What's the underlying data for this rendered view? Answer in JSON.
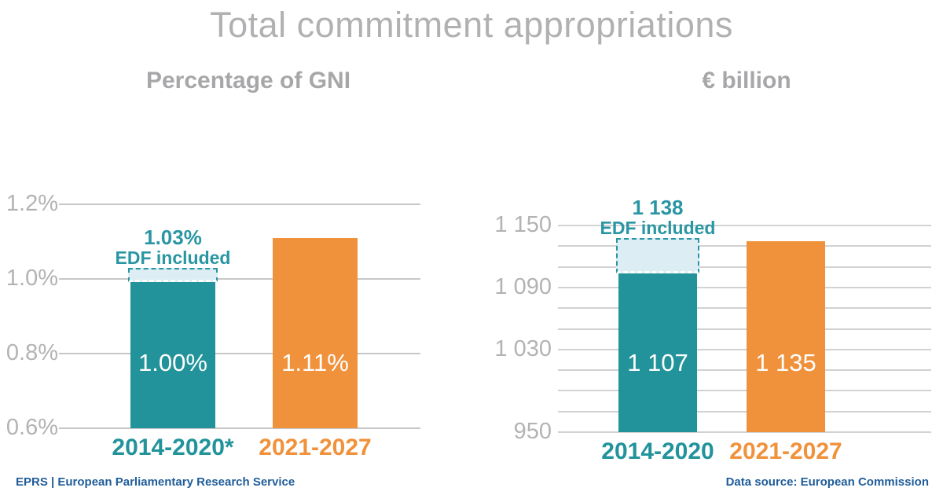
{
  "page": {
    "title": "Total commitment appropriations"
  },
  "footer": {
    "left": "EPRS | European Parliamentary Research Service",
    "right": "Data source: European Commission"
  },
  "colors": {
    "teal": "#22939B",
    "orange": "#F0923C",
    "edf_fill": "#DCEDF4",
    "edf_border": "#2A96A3",
    "grid": "#cbcbcb",
    "tick_text": "#b3b3b5",
    "title_text": "#b1b1b3",
    "subtitle_text": "#a7a7a9",
    "footer_text": "#1f5c99",
    "bar_value_text": "#ffffff"
  },
  "chart_data": [
    {
      "type": "bar",
      "title": "Percentage of GNI",
      "categories": [
        "2014-2020*",
        "2021-2027"
      ],
      "values": [
        1.0,
        1.11
      ],
      "bar_labels": [
        "1.00%",
        "1.11%"
      ],
      "bar_colors": [
        "#22939B",
        "#F0923C"
      ],
      "category_colors": [
        "#22939B",
        "#F0923C"
      ],
      "ylim": [
        0.6,
        1.2
      ],
      "yticks": [
        {
          "value": 1.2,
          "label": "1.2%"
        },
        {
          "value": 1.0,
          "label": "1.0%"
        },
        {
          "value": 0.8,
          "label": "0.8%"
        },
        {
          "value": 0.6,
          "label": "0.6%"
        }
      ],
      "grid": true,
      "legend": false,
      "edf_extension": {
        "bar_index": 0,
        "value": 1.03,
        "annotation_lines": [
          "1.03%",
          "EDF included"
        ]
      }
    },
    {
      "type": "bar",
      "title": "€ billion",
      "categories": [
        "2014-2020",
        "2021-2027"
      ],
      "values": [
        1107,
        1135
      ],
      "bar_labels": [
        "1 107",
        "1 135"
      ],
      "bar_colors": [
        "#22939B",
        "#F0923C"
      ],
      "category_colors": [
        "#22939B",
        "#F0923C"
      ],
      "ylim": [
        950,
        1150
      ],
      "yticks": [
        {
          "value": 1150,
          "label": "1 150"
        },
        {
          "value": 1090,
          "label": "1 090"
        },
        {
          "value": 1030,
          "label": "1 030"
        },
        {
          "value": 950,
          "label": "950"
        }
      ],
      "minor_grid_step": 20,
      "grid": true,
      "legend": false,
      "edf_extension": {
        "bar_index": 0,
        "value": 1138,
        "annotation_lines": [
          "1 138",
          "EDF included"
        ]
      }
    }
  ]
}
